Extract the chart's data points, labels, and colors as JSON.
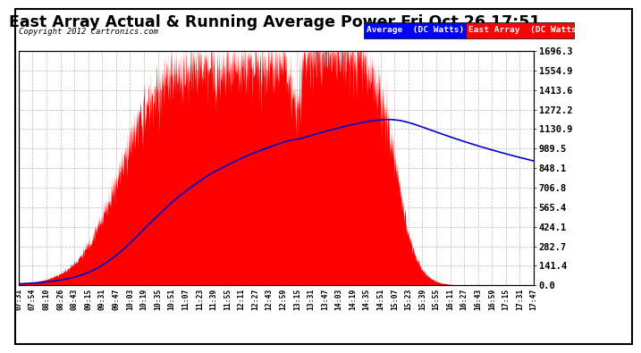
{
  "title": "East Array Actual & Running Average Power Fri Oct 26 17:51",
  "copyright": "Copyright 2012 Cartronics.com",
  "legend_labels": [
    "Average  (DC Watts)",
    "East Array  (DC Watts)"
  ],
  "yticks": [
    0.0,
    141.4,
    282.7,
    424.1,
    565.4,
    706.8,
    848.1,
    989.5,
    1130.9,
    1272.2,
    1413.6,
    1554.9,
    1696.3
  ],
  "ylim": [
    0,
    1696.3
  ],
  "background_color": "#ffffff",
  "xtick_labels": [
    "07:31",
    "07:54",
    "08:10",
    "08:26",
    "08:43",
    "09:15",
    "09:31",
    "09:47",
    "10:03",
    "10:19",
    "10:35",
    "10:51",
    "11:07",
    "11:23",
    "11:39",
    "11:55",
    "12:11",
    "12:27",
    "12:43",
    "12:59",
    "13:15",
    "13:31",
    "13:47",
    "14:03",
    "14:19",
    "14:35",
    "14:51",
    "15:07",
    "15:23",
    "15:39",
    "15:55",
    "16:11",
    "16:27",
    "16:43",
    "16:59",
    "17:15",
    "17:31",
    "17:47"
  ],
  "grid_color": "#bbbbbb",
  "area_color": "#ff0000",
  "line_color": "#0000cc"
}
